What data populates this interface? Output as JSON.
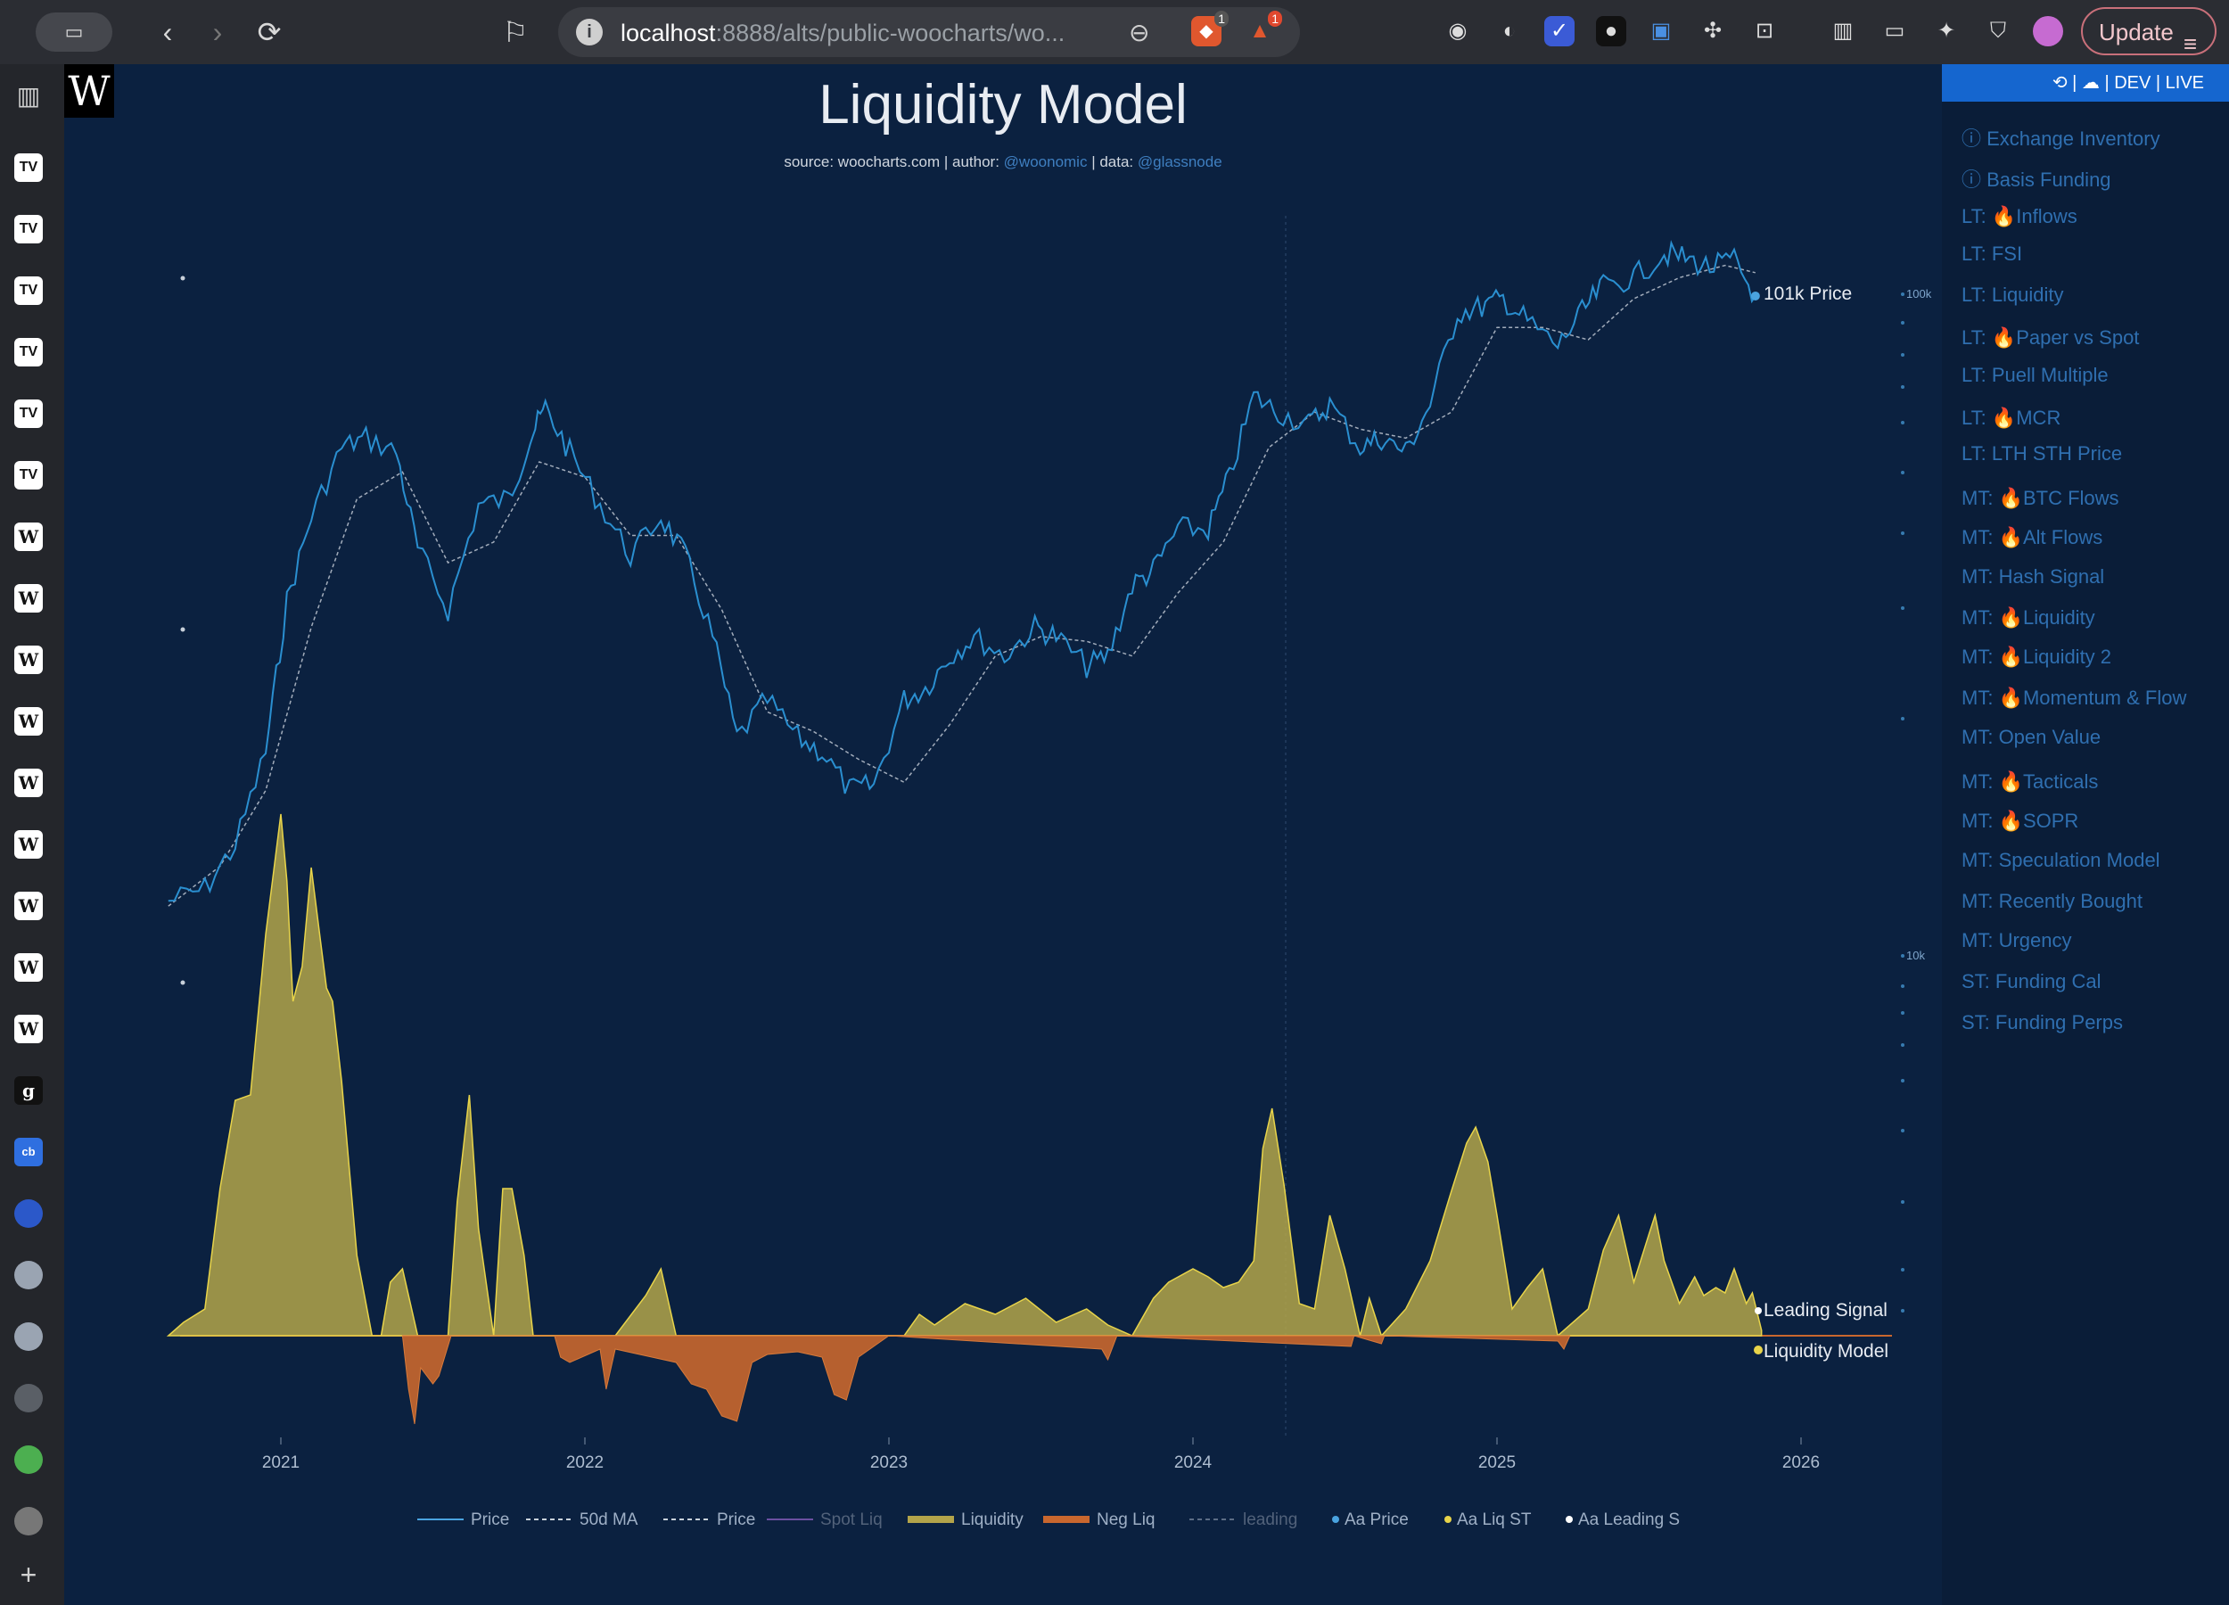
{
  "browser": {
    "url_host": "localhost",
    "url_rest": ":8888/alts/public-woocharts/wo...",
    "update_label": "Update",
    "zoom_icon": "zoom-out-icon",
    "ext_badge_1": "1",
    "ext_badge_2": "1"
  },
  "sidebar_tabs": [
    "TV",
    "TV",
    "TV",
    "TV",
    "TV",
    "TV",
    "W",
    "W",
    "W",
    "W",
    "W",
    "W",
    "W",
    "W",
    "W",
    "g",
    "cb"
  ],
  "chart": {
    "logo": "W",
    "title": "Liquidity Model",
    "subtitle_source": "source: woocharts.com",
    "subtitle_author_label": "author:",
    "subtitle_author": "@woonomic",
    "subtitle_data_label": "data:",
    "subtitle_data": "@glassnode",
    "label_price": "101k Price",
    "label_leading": "Leading Signal",
    "label_liquidity": "Liquidity Model",
    "axis_100k": "100k",
    "axis_10k": "10k"
  },
  "chart_data": {
    "type": "line",
    "title": "Liquidity Model",
    "x_ticks": [
      "2021",
      "2022",
      "2023",
      "2024",
      "2025",
      "2026"
    ],
    "x_range": [
      2020.4,
      2026.0
    ],
    "price_scale": "log",
    "price_series": {
      "name": "Price",
      "x": [
        2020.63,
        2020.75,
        2020.85,
        2020.95,
        2021.02,
        2021.1,
        2021.2,
        2021.28,
        2021.38,
        2021.45,
        2021.55,
        2021.65,
        2021.75,
        2021.82,
        2021.87,
        2021.95,
        2022.05,
        2022.15,
        2022.25,
        2022.33,
        2022.42,
        2022.5,
        2022.6,
        2022.7,
        2022.78,
        2022.87,
        2022.95,
        2023.05,
        2023.12,
        2023.2,
        2023.28,
        2023.38,
        2023.48,
        2023.55,
        2023.65,
        2023.72,
        2023.8,
        2023.87,
        2023.95,
        2024.05,
        2024.12,
        2024.2,
        2024.28,
        2024.38,
        2024.45,
        2024.55,
        2024.62,
        2024.7,
        2024.78,
        2024.87,
        2024.95,
        2025.02,
        2025.1,
        2025.2,
        2025.28,
        2025.35,
        2025.45,
        2025.55,
        2025.62,
        2025.7,
        2025.78,
        2025.85
      ],
      "y": [
        11000,
        11500,
        13500,
        19000,
        33000,
        45000,
        58000,
        60000,
        57000,
        40000,
        32000,
        47000,
        48000,
        60000,
        67000,
        57000,
        47000,
        39000,
        45000,
        39000,
        29000,
        20000,
        23000,
        20000,
        19000,
        16500,
        16800,
        23000,
        24000,
        27000,
        29000,
        27000,
        30000,
        29000,
        26000,
        27000,
        35000,
        37000,
        43000,
        43000,
        52000,
        70000,
        66000,
        63000,
        68000,
        58000,
        60000,
        57000,
        68000,
        95000,
        97000,
        100000,
        92000,
        84000,
        95000,
        105000,
        108000,
        118000,
        116000,
        112000,
        115000,
        101000
      ]
    },
    "ma_series": {
      "name": "50d MA",
      "x": [
        2020.63,
        2020.8,
        2020.95,
        2021.1,
        2021.25,
        2021.4,
        2021.55,
        2021.7,
        2021.85,
        2022.0,
        2022.15,
        2022.3,
        2022.45,
        2022.6,
        2022.75,
        2022.9,
        2023.05,
        2023.2,
        2023.35,
        2023.5,
        2023.65,
        2023.8,
        2023.95,
        2024.1,
        2024.25,
        2024.4,
        2024.55,
        2024.7,
        2024.85,
        2025.0,
        2025.15,
        2025.3,
        2025.45,
        2025.6,
        2025.75,
        2025.85
      ],
      "y": [
        10800,
        12500,
        16500,
        30000,
        48000,
        53000,
        38000,
        41000,
        55000,
        52000,
        42000,
        42000,
        32000,
        22000,
        20500,
        18500,
        17000,
        21000,
        27000,
        29000,
        28500,
        27000,
        34000,
        41000,
        58000,
        66000,
        62000,
        60000,
        66000,
        90000,
        90000,
        86000,
        100000,
        108000,
        113000,
        110000
      ]
    },
    "liquidity_series": {
      "name": "Liquidity",
      "x": [
        2020.63,
        2020.68,
        2020.75,
        2020.8,
        2020.85,
        2020.9,
        2020.95,
        2021.0,
        2021.02,
        2021.04,
        2021.07,
        2021.1,
        2021.13,
        2021.15,
        2021.17,
        2021.2,
        2021.25,
        2021.3,
        2021.33,
        2021.36,
        2021.4,
        2021.45,
        2021.55,
        2021.58,
        2021.62,
        2021.65,
        2021.7,
        2021.73,
        2021.76,
        2021.8,
        2021.83,
        2021.87,
        2021.9,
        2022.0,
        2022.1,
        2022.2,
        2022.25,
        2022.3,
        2022.5,
        2022.8,
        2022.95,
        2023.05,
        2023.1,
        2023.15,
        2023.25,
        2023.35,
        2023.45,
        2023.55,
        2023.65,
        2023.72,
        2023.8,
        2023.87,
        2023.92,
        2024.0,
        2024.05,
        2024.1,
        2024.15,
        2024.2,
        2024.23,
        2024.26,
        2024.3,
        2024.35,
        2024.4,
        2024.45,
        2024.5,
        2024.55,
        2024.58,
        2024.62,
        2024.7,
        2024.78,
        2024.85,
        2024.9,
        2024.93,
        2024.97,
        2025.0,
        2025.05,
        2025.1,
        2025.15,
        2025.2,
        2025.3,
        2025.35,
        2025.4,
        2025.45,
        2025.5,
        2025.52,
        2025.55,
        2025.6,
        2025.65,
        2025.68,
        2025.72,
        2025.75,
        2025.78,
        2025.82,
        2025.84,
        2025.87
      ],
      "y": [
        0,
        0.05,
        0.1,
        0.55,
        0.88,
        0.9,
        1.5,
        1.95,
        1.7,
        1.25,
        1.38,
        1.75,
        1.48,
        1.3,
        1.25,
        0.95,
        0.3,
        0,
        0,
        0.2,
        0.25,
        0,
        0,
        0.5,
        0.9,
        0.4,
        0,
        0.55,
        0.55,
        0.3,
        0,
        0,
        0,
        0,
        0,
        0.15,
        0.25,
        0,
        0,
        0,
        0,
        0,
        0.08,
        0.04,
        0.12,
        0.08,
        0.14,
        0.05,
        0.1,
        0.04,
        0,
        0.14,
        0.2,
        0.25,
        0.22,
        0.18,
        0.2,
        0.28,
        0.7,
        0.85,
        0.56,
        0.12,
        0.1,
        0.45,
        0.25,
        0,
        0.14,
        0,
        0.1,
        0.28,
        0.54,
        0.72,
        0.78,
        0.65,
        0.45,
        0.1,
        0.18,
        0.25,
        0,
        0.1,
        0.32,
        0.45,
        0.2,
        0.38,
        0.45,
        0.28,
        0.12,
        0.22,
        0.15,
        0.18,
        0.16,
        0.25,
        0.12,
        0.16,
        0.02
      ],
      "color": "#b3a44a"
    },
    "neg_liquidity_series": {
      "name": "Neg Liq",
      "x": [
        2021.4,
        2021.42,
        2021.44,
        2021.46,
        2021.5,
        2021.52,
        2021.56,
        2021.9,
        2021.92,
        2021.95,
        2022.05,
        2022.07,
        2022.1,
        2022.3,
        2022.35,
        2022.4,
        2022.45,
        2022.5,
        2022.55,
        2022.6,
        2022.7,
        2022.78,
        2022.82,
        2022.86,
        2022.9,
        2023.0,
        2023.7,
        2023.72,
        2023.75,
        2024.52,
        2024.53,
        2024.62,
        2024.63,
        2025.2,
        2025.22,
        2025.24
      ],
      "y": [
        0,
        -0.2,
        -0.33,
        -0.12,
        -0.18,
        -0.15,
        0,
        0,
        -0.08,
        -0.1,
        -0.05,
        -0.2,
        -0.05,
        -0.1,
        -0.18,
        -0.2,
        -0.3,
        -0.32,
        -0.1,
        -0.07,
        -0.06,
        -0.08,
        -0.22,
        -0.24,
        -0.08,
        0,
        -0.05,
        -0.09,
        0,
        -0.04,
        0,
        -0.03,
        0,
        -0.02,
        -0.05,
        0
      ],
      "color": "#c9672e"
    },
    "legend": [
      {
        "name": "Price",
        "style": "line",
        "color": "#4aa3df"
      },
      {
        "name": "50d MA",
        "style": "dash",
        "color": "#c8d0da"
      },
      {
        "name": "Price",
        "style": "dash",
        "color": "#c8d0da"
      },
      {
        "name": "Spot Liq",
        "style": "line",
        "color": "#6b4fa0"
      },
      {
        "name": "Liquidity",
        "style": "block",
        "color": "#b3a44a"
      },
      {
        "name": "Neg Liq",
        "style": "block",
        "color": "#c9672e"
      },
      {
        "name": "leading",
        "style": "dash",
        "color": "#5c6d85"
      },
      {
        "name": "Aa Price",
        "style": "dot",
        "color": "#4aa3df"
      },
      {
        "name": "Aa Liq ST",
        "style": "dot",
        "color": "#e8d44a"
      },
      {
        "name": "Aa Leading S",
        "style": "dot",
        "color": "#ffffff"
      }
    ]
  },
  "panel": {
    "header": "| DEV | LIVE",
    "links": [
      {
        "prefix": "ⓘ ",
        "fire": false,
        "label": "Exchange Inventory"
      },
      {
        "prefix": "ⓘ ",
        "fire": false,
        "label": "Basis Funding"
      },
      {
        "prefix": "LT: ",
        "fire": true,
        "label": "Inflows"
      },
      {
        "prefix": "LT: ",
        "fire": false,
        "label": "FSI"
      },
      {
        "prefix": "LT: ",
        "fire": false,
        "label": "Liquidity"
      },
      {
        "prefix": "LT: ",
        "fire": true,
        "label": "Paper vs Spot"
      },
      {
        "prefix": "LT: ",
        "fire": false,
        "label": "Puell Multiple"
      },
      {
        "prefix": "LT: ",
        "fire": true,
        "label": "MCR"
      },
      {
        "prefix": "LT: ",
        "fire": false,
        "label": "LTH STH Price"
      },
      {
        "prefix": "MT: ",
        "fire": true,
        "label": "BTC Flows"
      },
      {
        "prefix": "MT: ",
        "fire": true,
        "label": "Alt Flows"
      },
      {
        "prefix": "MT: ",
        "fire": false,
        "label": "Hash Signal"
      },
      {
        "prefix": "MT: ",
        "fire": true,
        "label": "Liquidity"
      },
      {
        "prefix": "MT: ",
        "fire": true,
        "label": "Liquidity 2"
      },
      {
        "prefix": "MT: ",
        "fire": true,
        "label": "Momentum & Flow"
      },
      {
        "prefix": "MT: ",
        "fire": false,
        "label": "Open Value"
      },
      {
        "prefix": "MT: ",
        "fire": true,
        "label": "Tacticals"
      },
      {
        "prefix": "MT: ",
        "fire": true,
        "label": "SOPR"
      },
      {
        "prefix": "MT: ",
        "fire": false,
        "label": "Speculation Model"
      },
      {
        "prefix": "MT: ",
        "fire": false,
        "label": "Recently Bought"
      },
      {
        "prefix": "MT: ",
        "fire": false,
        "label": "Urgency"
      },
      {
        "prefix": "ST: ",
        "fire": false,
        "label": "Funding Cal"
      },
      {
        "prefix": "ST: ",
        "fire": false,
        "label": "Funding Perps"
      }
    ]
  }
}
